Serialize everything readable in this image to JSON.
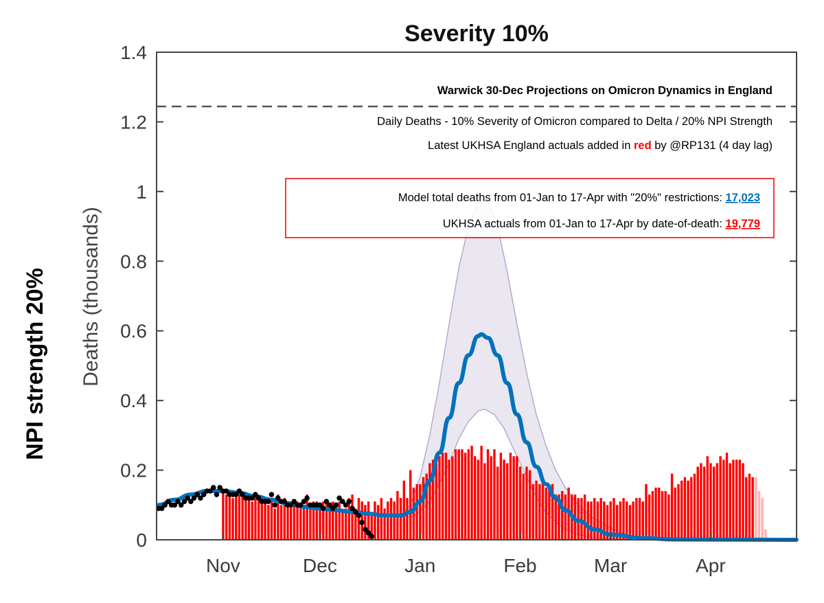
{
  "chart_data": {
    "type": "bar+line",
    "title": "Severity 10%",
    "outer_label": "NPI strength 20%",
    "ylabel": "Deaths (thousands)",
    "xlabel": "",
    "x_unit": "days since 01-Nov",
    "xlim": [
      -20.6,
      177.6
    ],
    "ylim": [
      0,
      1.4
    ],
    "yticks": [
      0,
      0.2,
      0.4,
      0.6,
      0.8,
      1,
      1.2,
      1.4
    ],
    "ytick_labels": [
      "0",
      "0.2",
      "0.4",
      "0.6",
      "0.8",
      "1",
      "1.2",
      "1.4"
    ],
    "xticks": [
      0,
      30,
      61,
      92,
      120,
      151
    ],
    "xtick_labels": [
      "Nov",
      "Dec",
      "Jan",
      "Feb",
      "Mar",
      "Apr"
    ],
    "grid": false,
    "reference_line": {
      "y": 1.245,
      "style": "dashed"
    },
    "annotations": {
      "header": "Warwick 30-Dec Projections on Omicron Dynamics in England",
      "subtitle": "Daily Deaths - 10% Severity of Omicron compared to Delta / 20% NPI Strength",
      "note_prefix": "Latest UKHSA England actuals added in ",
      "note_red": "red",
      "note_suffix": " by @RP131 (4 day lag)",
      "model_total_label": "Model total deaths from 01-Jan to 17-Apr with \"20%\" restrictions: ",
      "model_total_value": "17,023",
      "actual_total_label": "UKHSA actuals from 01-Jan to 17-Apr by date-of-death: ",
      "actual_total_value": "19,779"
    },
    "colors": {
      "model": "#0072bd",
      "actuals": "#ff0000",
      "actuals_lag": "#ffb3b3",
      "band_fill": "#e8e4ef",
      "band_edge": "#b7a9cf",
      "observed": "#000000",
      "box": "#e00000"
    },
    "actuals": {
      "name": "UKHSA England actuals (red bars)",
      "start_day": 0,
      "lag_count": 4,
      "values": [
        0.14,
        0.13,
        0.13,
        0.12,
        0.13,
        0.14,
        0.13,
        0.12,
        0.12,
        0.11,
        0.12,
        0.12,
        0.11,
        0.11,
        0.1,
        0.12,
        0.09,
        0.13,
        0.1,
        0.12,
        0.11,
        0.11,
        0.1,
        0.11,
        0.09,
        0.1,
        0.13,
        0.1,
        0.11,
        0.11,
        0.09,
        0.11,
        0.11,
        0.09,
        0.11,
        0.1,
        0.11,
        0.08,
        0.09,
        0.12,
        0.13,
        0.09,
        0.12,
        0.11,
        0.1,
        0.11,
        0.08,
        0.11,
        0.1,
        0.12,
        0.09,
        0.11,
        0.12,
        0.11,
        0.14,
        0.12,
        0.17,
        0.12,
        0.2,
        0.15,
        0.16,
        0.16,
        0.18,
        0.19,
        0.22,
        0.23,
        0.22,
        0.24,
        0.25,
        0.25,
        0.23,
        0.24,
        0.26,
        0.26,
        0.26,
        0.25,
        0.26,
        0.27,
        0.24,
        0.23,
        0.27,
        0.22,
        0.26,
        0.24,
        0.26,
        0.21,
        0.25,
        0.23,
        0.22,
        0.25,
        0.24,
        0.24,
        0.21,
        0.19,
        0.21,
        0.2,
        0.16,
        0.17,
        0.16,
        0.17,
        0.15,
        0.15,
        0.16,
        0.13,
        0.13,
        0.14,
        0.13,
        0.15,
        0.13,
        0.13,
        0.12,
        0.12,
        0.13,
        0.11,
        0.11,
        0.12,
        0.11,
        0.12,
        0.11,
        0.1,
        0.11,
        0.12,
        0.1,
        0.11,
        0.12,
        0.11,
        0.1,
        0.11,
        0.12,
        0.12,
        0.11,
        0.16,
        0.13,
        0.14,
        0.15,
        0.15,
        0.14,
        0.14,
        0.13,
        0.19,
        0.15,
        0.16,
        0.17,
        0.18,
        0.17,
        0.18,
        0.19,
        0.21,
        0.22,
        0.21,
        0.24,
        0.22,
        0.21,
        0.22,
        0.24,
        0.23,
        0.25,
        0.22,
        0.23,
        0.23,
        0.23,
        0.22,
        0.18,
        0.19,
        0.18,
        0.18,
        0.14,
        0.12,
        0.03
      ]
    },
    "observed": {
      "name": "Observed (black dots)",
      "start_day": -20,
      "values": [
        0.09,
        0.09,
        0.1,
        0.11,
        0.1,
        0.1,
        0.11,
        0.1,
        0.11,
        0.12,
        0.11,
        0.12,
        0.13,
        0.12,
        0.13,
        0.14,
        0.14,
        0.15,
        0.13,
        0.15,
        0.14,
        0.14,
        0.13,
        0.13,
        0.13,
        0.14,
        0.13,
        0.12,
        0.12,
        0.12,
        0.13,
        0.12,
        0.11,
        0.11,
        0.11,
        0.13,
        0.1,
        0.12,
        0.11,
        0.11,
        0.1,
        0.1,
        0.11,
        0.1,
        0.1,
        0.11,
        0.12,
        0.1,
        0.1,
        0.1,
        0.1,
        0.09,
        0.11,
        0.1,
        0.09,
        0.1,
        0.12,
        0.11,
        0.1,
        0.11,
        0.09,
        0.08,
        0.07,
        0.05,
        0.03,
        0.02,
        0.01
      ]
    },
    "model": {
      "name": "Model projection (median)",
      "points": [
        [
          -20,
          0.1
        ],
        [
          -15,
          0.115
        ],
        [
          -10,
          0.13
        ],
        [
          -5,
          0.14
        ],
        [
          0,
          0.14
        ],
        [
          5,
          0.135
        ],
        [
          10,
          0.125
        ],
        [
          15,
          0.115
        ],
        [
          20,
          0.105
        ],
        [
          25,
          0.095
        ],
        [
          30,
          0.09
        ],
        [
          35,
          0.085
        ],
        [
          40,
          0.08
        ],
        [
          45,
          0.075
        ],
        [
          50,
          0.07
        ],
        [
          55,
          0.07
        ],
        [
          58,
          0.08
        ],
        [
          61,
          0.11
        ],
        [
          64,
          0.17
        ],
        [
          67,
          0.25
        ],
        [
          70,
          0.35
        ],
        [
          73,
          0.45
        ],
        [
          76,
          0.53
        ],
        [
          79,
          0.585
        ],
        [
          80,
          0.59
        ],
        [
          82,
          0.58
        ],
        [
          85,
          0.53
        ],
        [
          88,
          0.45
        ],
        [
          91,
          0.36
        ],
        [
          94,
          0.28
        ],
        [
          97,
          0.21
        ],
        [
          100,
          0.16
        ],
        [
          103,
          0.12
        ],
        [
          106,
          0.085
        ],
        [
          110,
          0.055
        ],
        [
          115,
          0.03
        ],
        [
          120,
          0.015
        ],
        [
          130,
          0.005
        ],
        [
          140,
          0.001
        ],
        [
          177.6,
          0
        ]
      ]
    },
    "band_upper": [
      [
        55,
        0.07
      ],
      [
        58,
        0.1
      ],
      [
        61,
        0.18
      ],
      [
        64,
        0.3
      ],
      [
        67,
        0.45
      ],
      [
        70,
        0.62
      ],
      [
        73,
        0.78
      ],
      [
        76,
        0.9
      ],
      [
        79,
        0.97
      ],
      [
        80,
        0.98
      ],
      [
        82,
        0.97
      ],
      [
        85,
        0.9
      ],
      [
        88,
        0.77
      ],
      [
        91,
        0.62
      ],
      [
        94,
        0.48
      ],
      [
        97,
        0.36
      ],
      [
        100,
        0.27
      ],
      [
        103,
        0.2
      ],
      [
        106,
        0.15
      ],
      [
        110,
        0.1
      ],
      [
        115,
        0.06
      ],
      [
        120,
        0.035
      ],
      [
        125,
        0.015
      ],
      [
        130,
        0.005
      ]
    ],
    "band_lower": [
      [
        55,
        0.07
      ],
      [
        58,
        0.065
      ],
      [
        61,
        0.08
      ],
      [
        64,
        0.11
      ],
      [
        67,
        0.16
      ],
      [
        70,
        0.22
      ],
      [
        73,
        0.29
      ],
      [
        76,
        0.34
      ],
      [
        79,
        0.37
      ],
      [
        81,
        0.375
      ],
      [
        84,
        0.36
      ],
      [
        87,
        0.32
      ],
      [
        90,
        0.26
      ],
      [
        93,
        0.2
      ],
      [
        96,
        0.14
      ],
      [
        99,
        0.09
      ],
      [
        102,
        0.06
      ],
      [
        105,
        0.035
      ],
      [
        110,
        0.015
      ],
      [
        115,
        0.005
      ],
      [
        130,
        0
      ]
    ]
  }
}
